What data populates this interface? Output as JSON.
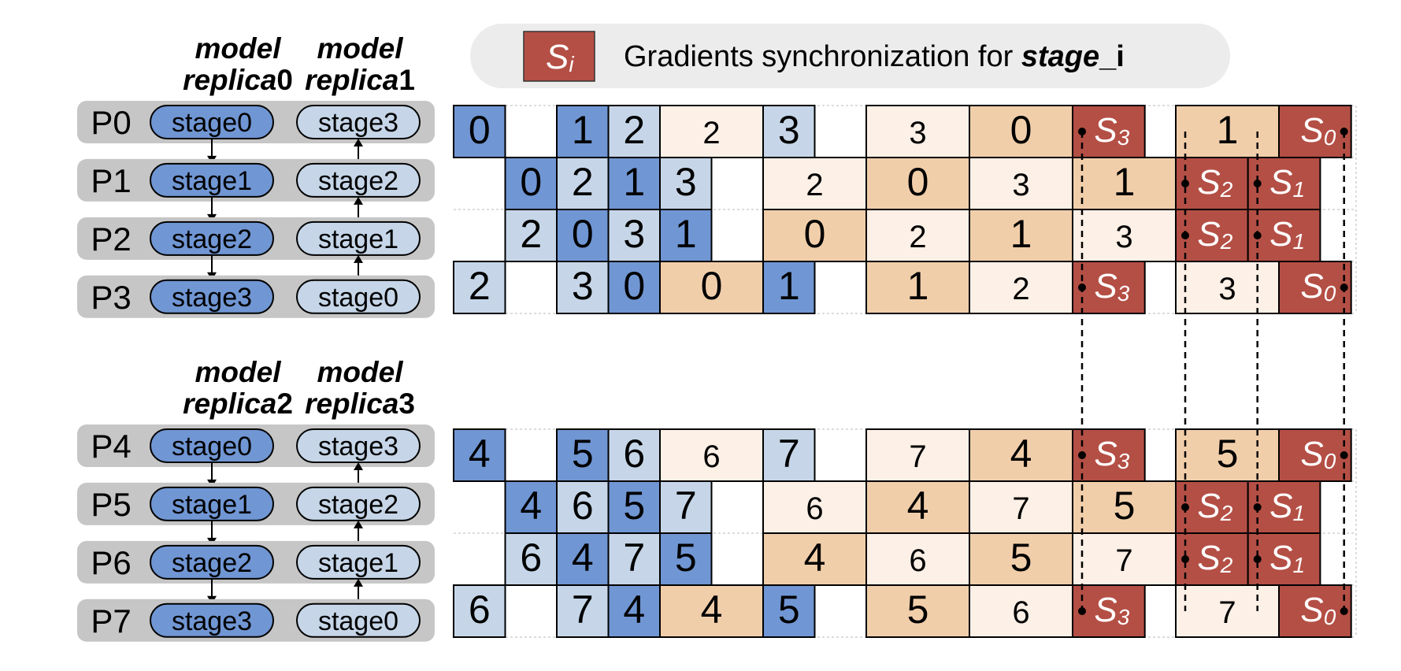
{
  "legend": {
    "symbol": "S",
    "symbol_sub": "i",
    "text": "Gradients synchronization for ",
    "text_bold_italic": "stage",
    "text_bold_suffix": "_i"
  },
  "colors": {
    "fwd_dark": "#7096d3",
    "fwd_light": "#c6d6e8",
    "bwd_dark": "#f1ceaa",
    "bwd_light": "#fdf0e6",
    "sync": "#b44f45",
    "proc_bg": "#c6c6c6"
  },
  "groups": [
    {
      "replicas": [
        {
          "line1": "model",
          "line2_italic": "replica",
          "line2_num": "0"
        },
        {
          "line1": "model",
          "line2_italic": "replica",
          "line2_num": "1"
        }
      ],
      "processes": [
        {
          "label": "P0",
          "left": "stage0",
          "right": "stage3"
        },
        {
          "label": "P1",
          "left": "stage1",
          "right": "stage2"
        },
        {
          "label": "P2",
          "left": "stage2",
          "right": "stage1"
        },
        {
          "label": "P3",
          "left": "stage3",
          "right": "stage0"
        }
      ],
      "rows": [
        [
          {
            "c": 0,
            "w": 1,
            "k": "fd",
            "t": "0"
          },
          {
            "c": 2,
            "w": 1,
            "k": "fd",
            "t": "1"
          },
          {
            "c": 3,
            "w": 1,
            "k": "fl",
            "t": "2"
          },
          {
            "c": 4,
            "w": 2,
            "k": "bl",
            "t": "2"
          },
          {
            "c": 6,
            "w": 1,
            "k": "fl",
            "t": "3"
          },
          {
            "c": 8,
            "w": 2,
            "k": "bl",
            "t": "3"
          },
          {
            "c": 10,
            "w": 2,
            "k": "bd",
            "t": "0"
          },
          {
            "c": 12,
            "w": 1.4,
            "k": "s",
            "t": "3",
            "dot": "l"
          },
          {
            "c": 14,
            "w": 2,
            "k": "bd",
            "t": "1"
          },
          {
            "c": 16,
            "w": 1.4,
            "k": "s",
            "t": "0",
            "dot": "r"
          }
        ],
        [
          {
            "c": 1,
            "w": 1,
            "k": "fd",
            "t": "0"
          },
          {
            "c": 2,
            "w": 1,
            "k": "fl",
            "t": "2"
          },
          {
            "c": 3,
            "w": 1,
            "k": "fd",
            "t": "1"
          },
          {
            "c": 4,
            "w": 1,
            "k": "fl",
            "t": "3"
          },
          {
            "c": 6,
            "w": 2,
            "k": "bl",
            "t": "2"
          },
          {
            "c": 8,
            "w": 2,
            "k": "bd",
            "t": "0"
          },
          {
            "c": 10,
            "w": 2,
            "k": "bl",
            "t": "3"
          },
          {
            "c": 12,
            "w": 2,
            "k": "bd",
            "t": "1"
          },
          {
            "c": 14,
            "w": 1.4,
            "k": "s",
            "t": "2",
            "dot": "l"
          },
          {
            "c": 15.4,
            "w": 1.4,
            "k": "s",
            "t": "1",
            "dot": "l"
          }
        ],
        [
          {
            "c": 1,
            "w": 1,
            "k": "fl",
            "t": "2"
          },
          {
            "c": 2,
            "w": 1,
            "k": "fd",
            "t": "0"
          },
          {
            "c": 3,
            "w": 1,
            "k": "fl",
            "t": "3"
          },
          {
            "c": 4,
            "w": 1,
            "k": "fd",
            "t": "1"
          },
          {
            "c": 6,
            "w": 2,
            "k": "bd",
            "t": "0"
          },
          {
            "c": 8,
            "w": 2,
            "k": "bl",
            "t": "2"
          },
          {
            "c": 10,
            "w": 2,
            "k": "bd",
            "t": "1"
          },
          {
            "c": 12,
            "w": 2,
            "k": "bl",
            "t": "3"
          },
          {
            "c": 14,
            "w": 1.4,
            "k": "s",
            "t": "2",
            "dot": "l"
          },
          {
            "c": 15.4,
            "w": 1.4,
            "k": "s",
            "t": "1",
            "dot": "l"
          }
        ],
        [
          {
            "c": 0,
            "w": 1,
            "k": "fl",
            "t": "2"
          },
          {
            "c": 2,
            "w": 1,
            "k": "fl",
            "t": "3"
          },
          {
            "c": 3,
            "w": 1,
            "k": "fd",
            "t": "0"
          },
          {
            "c": 4,
            "w": 2,
            "k": "bd",
            "t": "0"
          },
          {
            "c": 6,
            "w": 1,
            "k": "fd",
            "t": "1"
          },
          {
            "c": 8,
            "w": 2,
            "k": "bd",
            "t": "1"
          },
          {
            "c": 10,
            "w": 2,
            "k": "bl",
            "t": "2"
          },
          {
            "c": 12,
            "w": 1.4,
            "k": "s",
            "t": "3",
            "dot": "l"
          },
          {
            "c": 14,
            "w": 2,
            "k": "bl",
            "t": "3"
          },
          {
            "c": 16,
            "w": 1.4,
            "k": "s",
            "t": "0",
            "dot": "r"
          }
        ]
      ]
    },
    {
      "replicas": [
        {
          "line1": "model",
          "line2_italic": "replica",
          "line2_num": "2"
        },
        {
          "line1": "model",
          "line2_italic": "replica",
          "line2_num": "3"
        }
      ],
      "processes": [
        {
          "label": "P4",
          "left": "stage0",
          "right": "stage3"
        },
        {
          "label": "P5",
          "left": "stage1",
          "right": "stage2"
        },
        {
          "label": "P6",
          "left": "stage2",
          "right": "stage1"
        },
        {
          "label": "P7",
          "left": "stage3",
          "right": "stage0"
        }
      ],
      "rows": [
        [
          {
            "c": 0,
            "w": 1,
            "k": "fd",
            "t": "4"
          },
          {
            "c": 2,
            "w": 1,
            "k": "fd",
            "t": "5"
          },
          {
            "c": 3,
            "w": 1,
            "k": "fl",
            "t": "6"
          },
          {
            "c": 4,
            "w": 2,
            "k": "bl",
            "t": "6"
          },
          {
            "c": 6,
            "w": 1,
            "k": "fl",
            "t": "7"
          },
          {
            "c": 8,
            "w": 2,
            "k": "bl",
            "t": "7"
          },
          {
            "c": 10,
            "w": 2,
            "k": "bd",
            "t": "4"
          },
          {
            "c": 12,
            "w": 1.4,
            "k": "s",
            "t": "3",
            "dot": "l"
          },
          {
            "c": 14,
            "w": 2,
            "k": "bd",
            "t": "5"
          },
          {
            "c": 16,
            "w": 1.4,
            "k": "s",
            "t": "0",
            "dot": "r"
          }
        ],
        [
          {
            "c": 1,
            "w": 1,
            "k": "fd",
            "t": "4"
          },
          {
            "c": 2,
            "w": 1,
            "k": "fl",
            "t": "6"
          },
          {
            "c": 3,
            "w": 1,
            "k": "fd",
            "t": "5"
          },
          {
            "c": 4,
            "w": 1,
            "k": "fl",
            "t": "7"
          },
          {
            "c": 6,
            "w": 2,
            "k": "bl",
            "t": "6"
          },
          {
            "c": 8,
            "w": 2,
            "k": "bd",
            "t": "4"
          },
          {
            "c": 10,
            "w": 2,
            "k": "bl",
            "t": "7"
          },
          {
            "c": 12,
            "w": 2,
            "k": "bd",
            "t": "5"
          },
          {
            "c": 14,
            "w": 1.4,
            "k": "s",
            "t": "2",
            "dot": "l"
          },
          {
            "c": 15.4,
            "w": 1.4,
            "k": "s",
            "t": "1",
            "dot": "l"
          }
        ],
        [
          {
            "c": 1,
            "w": 1,
            "k": "fl",
            "t": "6"
          },
          {
            "c": 2,
            "w": 1,
            "k": "fd",
            "t": "4"
          },
          {
            "c": 3,
            "w": 1,
            "k": "fl",
            "t": "7"
          },
          {
            "c": 4,
            "w": 1,
            "k": "fd",
            "t": "5"
          },
          {
            "c": 6,
            "w": 2,
            "k": "bd",
            "t": "4"
          },
          {
            "c": 8,
            "w": 2,
            "k": "bl",
            "t": "6"
          },
          {
            "c": 10,
            "w": 2,
            "k": "bd",
            "t": "5"
          },
          {
            "c": 12,
            "w": 2,
            "k": "bl",
            "t": "7"
          },
          {
            "c": 14,
            "w": 1.4,
            "k": "s",
            "t": "2",
            "dot": "l"
          },
          {
            "c": 15.4,
            "w": 1.4,
            "k": "s",
            "t": "1",
            "dot": "l"
          }
        ],
        [
          {
            "c": 0,
            "w": 1,
            "k": "fl",
            "t": "6"
          },
          {
            "c": 2,
            "w": 1,
            "k": "fl",
            "t": "7"
          },
          {
            "c": 3,
            "w": 1,
            "k": "fd",
            "t": "4"
          },
          {
            "c": 4,
            "w": 2,
            "k": "bd",
            "t": "4"
          },
          {
            "c": 6,
            "w": 1,
            "k": "fd",
            "t": "5"
          },
          {
            "c": 8,
            "w": 2,
            "k": "bd",
            "t": "5"
          },
          {
            "c": 10,
            "w": 2,
            "k": "bl",
            "t": "6"
          },
          {
            "c": 12,
            "w": 1.4,
            "k": "s",
            "t": "3",
            "dot": "l"
          },
          {
            "c": 14,
            "w": 2,
            "k": "bl",
            "t": "7"
          },
          {
            "c": 16,
            "w": 1.4,
            "k": "s",
            "t": "0",
            "dot": "r"
          }
        ]
      ]
    }
  ]
}
